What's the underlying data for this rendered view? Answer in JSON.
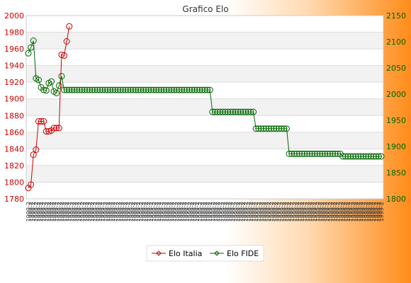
{
  "chart_data": {
    "type": "line",
    "title": "Grafico Elo",
    "y_left": {
      "min": 1780,
      "max": 2000,
      "ticks": [
        1780,
        1800,
        1820,
        1840,
        1860,
        1880,
        1900,
        1920,
        1940,
        1960,
        1980,
        2000
      ],
      "color": "#cc0000"
    },
    "y_right": {
      "min": 1800,
      "max": 2150,
      "ticks": [
        1800,
        1850,
        1900,
        1950,
        2000,
        2050,
        2100,
        2150
      ],
      "color": "#006600"
    },
    "x_tick_label": "1999-2",
    "grid": true,
    "legend_position": "bottom",
    "series": [
      {
        "name": "Elo Italia",
        "axis": "left",
        "color": "#cc0000",
        "values": [
          1793,
          1797,
          1833,
          1839,
          1873,
          1873,
          1873,
          1861,
          1861,
          1862,
          1865,
          1865,
          1865,
          1953,
          1952,
          1969,
          1987
        ]
      },
      {
        "name": "Elo FIDE",
        "axis": "right",
        "color": "#006600",
        "values": [
          2078,
          2089,
          2102,
          2030,
          2027,
          2013,
          2008,
          2007,
          2021,
          2024,
          2005,
          2002,
          2016,
          2034,
          2008,
          2008,
          2008,
          2008,
          2008,
          2008,
          2008,
          2008,
          2008,
          2008,
          2008,
          2008,
          2008,
          2008,
          2008,
          2008,
          2008,
          2008,
          2008,
          2008,
          2008,
          2008,
          2008,
          2008,
          2008,
          2008,
          2008,
          2008,
          2008,
          2008,
          2008,
          2008,
          2008,
          2008,
          2008,
          2008,
          2008,
          2008,
          2008,
          2008,
          2008,
          2008,
          2008,
          2008,
          2008,
          2008,
          2008,
          2008,
          2008,
          2008,
          2008,
          2008,
          2008,
          2008,
          2008,
          2008,
          2008,
          2008,
          1966,
          1966,
          1966,
          1966,
          1966,
          1966,
          1966,
          1966,
          1966,
          1966,
          1966,
          1966,
          1966,
          1966,
          1966,
          1966,
          1966,
          1934,
          1934,
          1934,
          1934,
          1934,
          1934,
          1934,
          1934,
          1934,
          1934,
          1934,
          1934,
          1934,
          1886,
          1886,
          1886,
          1886,
          1886,
          1886,
          1886,
          1886,
          1886,
          1886,
          1886,
          1886,
          1886,
          1886,
          1886,
          1886,
          1886,
          1886,
          1886,
          1886,
          1886,
          1881,
          1881,
          1881,
          1881,
          1881,
          1881,
          1881,
          1881,
          1881,
          1881,
          1881,
          1881,
          1881,
          1881,
          1881,
          1881
        ]
      }
    ]
  }
}
